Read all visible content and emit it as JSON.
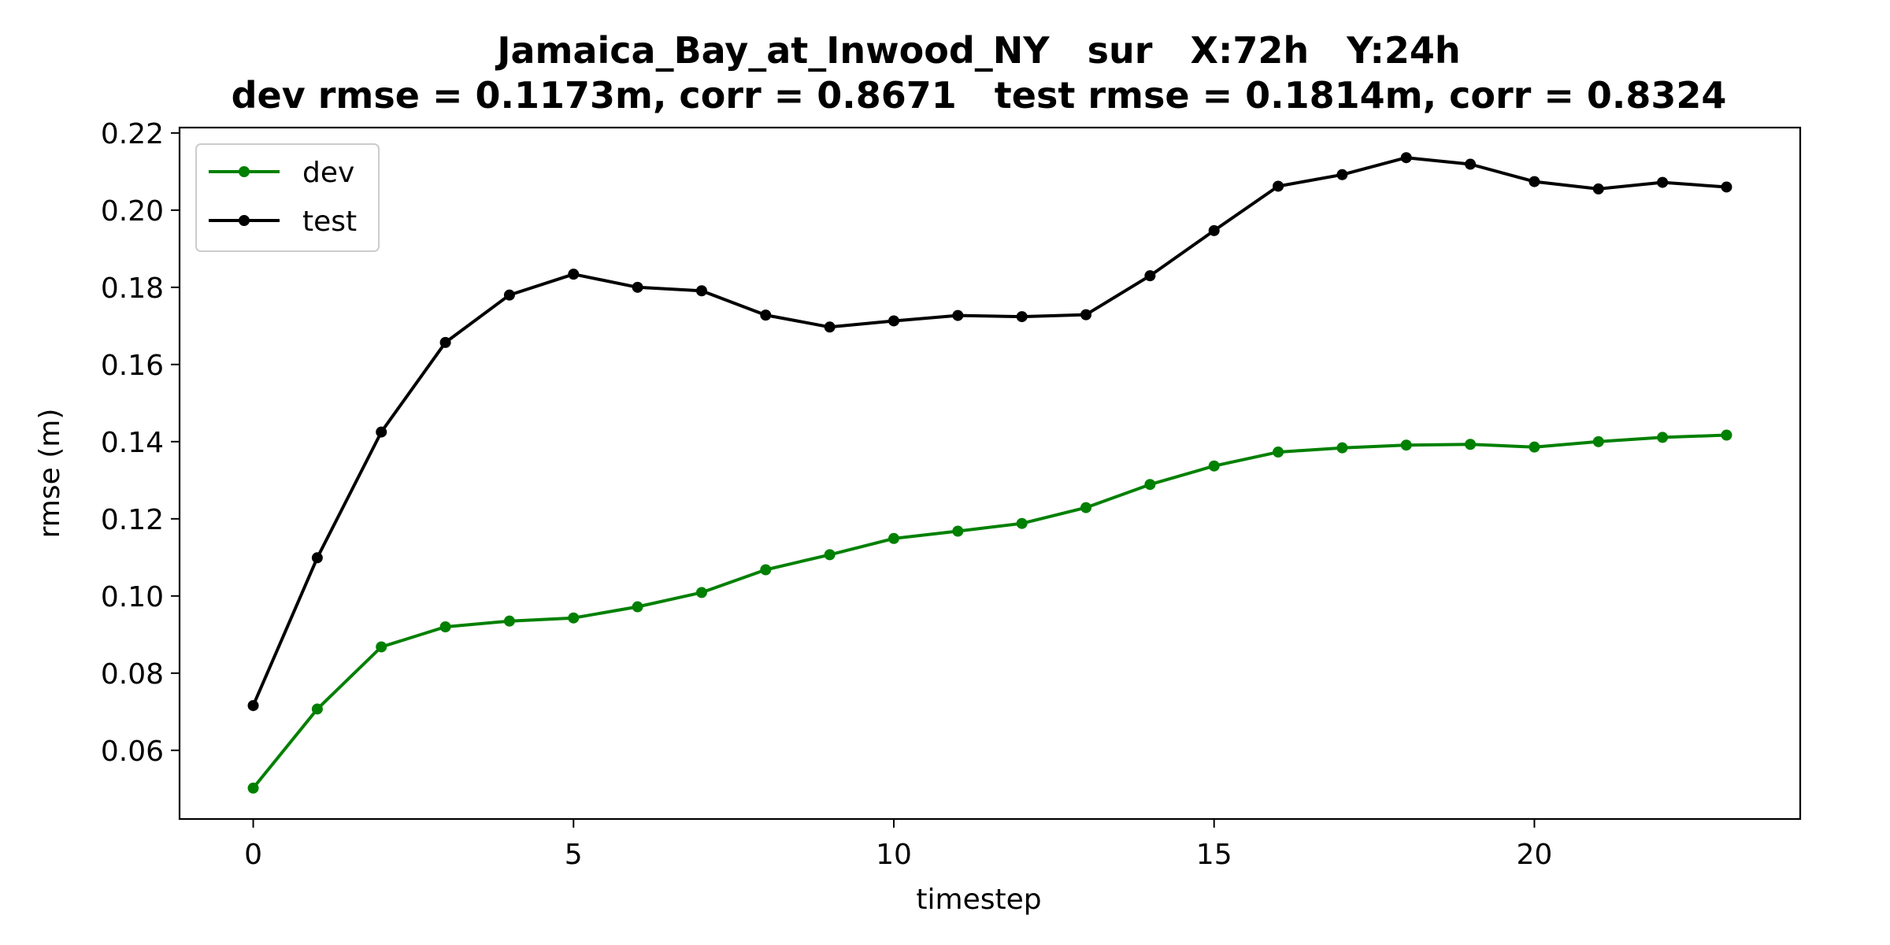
{
  "chart_data": {
    "type": "line",
    "title": "Jamaica_Bay_at_Inwood_NY   sur   X:72h   Y:24h",
    "subtitle": "dev rmse = 0.1173m, corr = 0.8671   test rmse = 0.1814m, corr = 0.8324",
    "xlabel": "timestep",
    "ylabel": "rmse (m)",
    "xlim": [
      -1.15,
      24.15
    ],
    "ylim": [
      0.0422,
      0.2214
    ],
    "xticks": [
      0,
      5,
      10,
      15,
      20
    ],
    "xtick_labels": [
      "0",
      "5",
      "10",
      "15",
      "20"
    ],
    "yticks": [
      0.06,
      0.08,
      0.1,
      0.12,
      0.14,
      0.16,
      0.18,
      0.2,
      0.22
    ],
    "ytick_labels": [
      "0.06",
      "0.08",
      "0.10",
      "0.12",
      "0.14",
      "0.16",
      "0.18",
      "0.20",
      "0.22"
    ],
    "grid": false,
    "legend_position": "top-left",
    "x": [
      0,
      1,
      2,
      3,
      4,
      5,
      6,
      7,
      8,
      9,
      10,
      11,
      12,
      13,
      14,
      15,
      16,
      17,
      18,
      19,
      20,
      21,
      22,
      23
    ],
    "series": [
      {
        "name": "dev",
        "color": "#008000",
        "values": [
          0.0502,
          0.0707,
          0.0868,
          0.092,
          0.0935,
          0.0943,
          0.0972,
          0.1009,
          0.1068,
          0.1107,
          0.1149,
          0.1168,
          0.1188,
          0.1229,
          0.1289,
          0.1337,
          0.1373,
          0.1384,
          0.1391,
          0.1393,
          0.1386,
          0.14,
          0.1411,
          0.1417
        ]
      },
      {
        "name": "test",
        "color": "#000000",
        "values": [
          0.0716,
          0.1099,
          0.1425,
          0.1657,
          0.178,
          0.1834,
          0.18,
          0.1791,
          0.1728,
          0.1697,
          0.1713,
          0.1727,
          0.1724,
          0.1729,
          0.183,
          0.1947,
          0.2062,
          0.2092,
          0.2136,
          0.2119,
          0.2074,
          0.2055,
          0.2072,
          0.206
        ]
      }
    ]
  }
}
